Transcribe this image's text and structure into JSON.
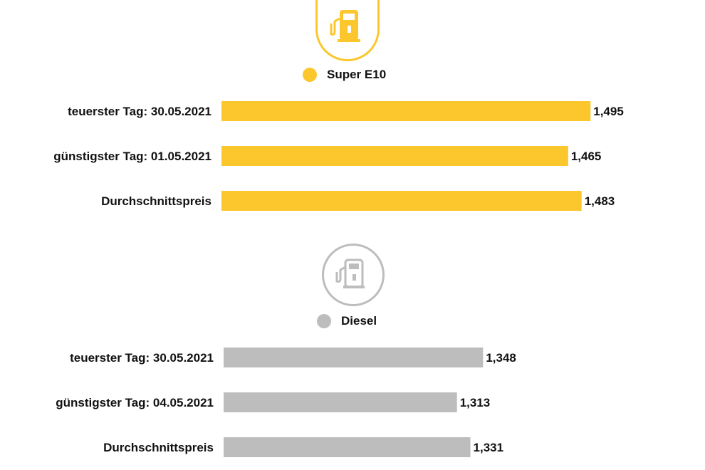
{
  "colors": {
    "super_e10": "#fcc72c",
    "diesel": "#bdbdbd",
    "text": "#111111"
  },
  "icons": {
    "super_e10": "fuel-pump-icon",
    "diesel": "fuel-pump-icon"
  },
  "chart_data": [
    {
      "type": "bar",
      "orientation": "horizontal",
      "series": [
        {
          "name": "Super E10",
          "values": [
            1.495,
            1.465,
            1.483
          ],
          "value_labels": [
            "1,495",
            "1,465",
            "1,483"
          ]
        }
      ],
      "categories": [
        "teuerster Tag: 30.05.2021",
        "günstigster Tag: 01.05.2021",
        "Durchschnittspreis"
      ],
      "xlim": [
        0,
        1.495
      ],
      "grid": false,
      "legend": "top-center"
    },
    {
      "type": "bar",
      "orientation": "horizontal",
      "series": [
        {
          "name": "Diesel",
          "values": [
            1.348,
            1.313,
            1.331
          ],
          "value_labels": [
            "1,348",
            "1,313",
            "1,331"
          ]
        }
      ],
      "categories": [
        "teuerster Tag: 30.05.2021",
        "günstigster Tag: 04.05.2021",
        "Durchschnittspreis"
      ],
      "xlim": [
        0,
        1.495
      ],
      "grid": false,
      "legend": "top-center"
    }
  ]
}
